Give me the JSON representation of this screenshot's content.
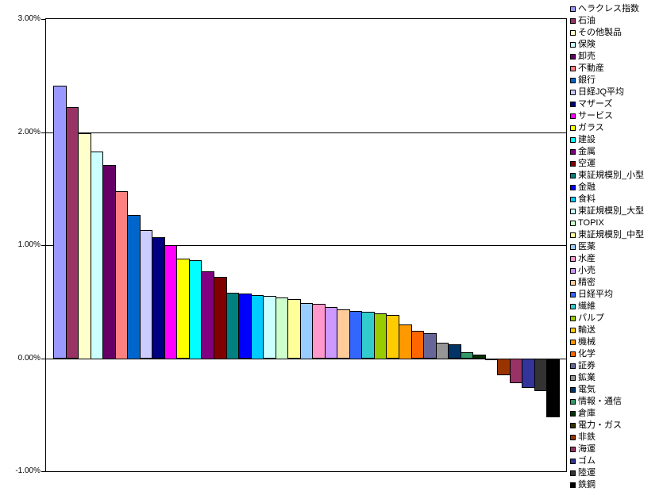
{
  "chart_data": {
    "type": "bar",
    "title": "",
    "xlabel": "",
    "ylabel": "",
    "ylim": [
      -1.0,
      3.0
    ],
    "grid": true,
    "legend_position": "right",
    "background_color": "#FFFFFF",
    "axis_color": "#000000",
    "gridline_color": "#000000",
    "y_ticks": [
      {
        "value": 3.0,
        "label": "3.00%"
      },
      {
        "value": 2.0,
        "label": "2.00%"
      },
      {
        "value": 1.0,
        "label": "1.00%"
      },
      {
        "value": 0.0,
        "label": "0.00%"
      },
      {
        "value": -1.0,
        "label": "-1.00%"
      }
    ],
    "series": [
      {
        "name": "ヘラクレス指数",
        "value": 2.41,
        "color": "#9999FF"
      },
      {
        "name": "石油",
        "value": 2.22,
        "color": "#993366"
      },
      {
        "name": "その他製品",
        "value": 1.99,
        "color": "#FFFFCC"
      },
      {
        "name": "保険",
        "value": 1.83,
        "color": "#CCFFFF"
      },
      {
        "name": "卸売",
        "value": 1.71,
        "color": "#660066"
      },
      {
        "name": "不動産",
        "value": 1.48,
        "color": "#FF8080"
      },
      {
        "name": "銀行",
        "value": 1.27,
        "color": "#0066CC"
      },
      {
        "name": "日経JQ平均",
        "value": 1.13,
        "color": "#CCCCFF"
      },
      {
        "name": "マザーズ",
        "value": 1.07,
        "color": "#000080"
      },
      {
        "name": "サービス",
        "value": 1.0,
        "color": "#FF00FF"
      },
      {
        "name": "ガラス",
        "value": 0.88,
        "color": "#FFFF00"
      },
      {
        "name": "建設",
        "value": 0.87,
        "color": "#00FFFF"
      },
      {
        "name": "金属",
        "value": 0.77,
        "color": "#800080"
      },
      {
        "name": "空運",
        "value": 0.72,
        "color": "#800000"
      },
      {
        "name": "東証規模別_小型",
        "value": 0.58,
        "color": "#008080"
      },
      {
        "name": "金融",
        "value": 0.57,
        "color": "#0000FF"
      },
      {
        "name": "食料",
        "value": 0.56,
        "color": "#00CCFF"
      },
      {
        "name": "東証規模別_大型",
        "value": 0.55,
        "color": "#CCFFFF"
      },
      {
        "name": "TOPIX",
        "value": 0.54,
        "color": "#CCFFCC"
      },
      {
        "name": "東証規模別_中型",
        "value": 0.52,
        "color": "#FFFF99"
      },
      {
        "name": "医薬",
        "value": 0.49,
        "color": "#99CCFF"
      },
      {
        "name": "水産",
        "value": 0.48,
        "color": "#FF99CC"
      },
      {
        "name": "小売",
        "value": 0.45,
        "color": "#CC99FF"
      },
      {
        "name": "精密",
        "value": 0.43,
        "color": "#FFCC99"
      },
      {
        "name": "日経平均",
        "value": 0.42,
        "color": "#3366FF"
      },
      {
        "name": "繊維",
        "value": 0.41,
        "color": "#33CCCC"
      },
      {
        "name": "パルプ",
        "value": 0.4,
        "color": "#99CC00"
      },
      {
        "name": "輸送",
        "value": 0.38,
        "color": "#FFCC00"
      },
      {
        "name": "機械",
        "value": 0.3,
        "color": "#FF9900"
      },
      {
        "name": "化学",
        "value": 0.24,
        "color": "#FF6600"
      },
      {
        "name": "証券",
        "value": 0.22,
        "color": "#666699"
      },
      {
        "name": "鉱業",
        "value": 0.14,
        "color": "#969696"
      },
      {
        "name": "電気",
        "value": 0.12,
        "color": "#003366"
      },
      {
        "name": "情報・通信",
        "value": 0.05,
        "color": "#339966"
      },
      {
        "name": "倉庫",
        "value": 0.03,
        "color": "#003300"
      },
      {
        "name": "電力・ガス",
        "value": -0.01,
        "color": "#333300"
      },
      {
        "name": "非鉄",
        "value": -0.14,
        "color": "#993300"
      },
      {
        "name": "海運",
        "value": -0.21,
        "color": "#993366"
      },
      {
        "name": "ゴム",
        "value": -0.25,
        "color": "#333399"
      },
      {
        "name": "陸運",
        "value": -0.28,
        "color": "#333333"
      },
      {
        "name": "鉄鋼",
        "value": -0.51,
        "color": "#000000"
      }
    ]
  }
}
